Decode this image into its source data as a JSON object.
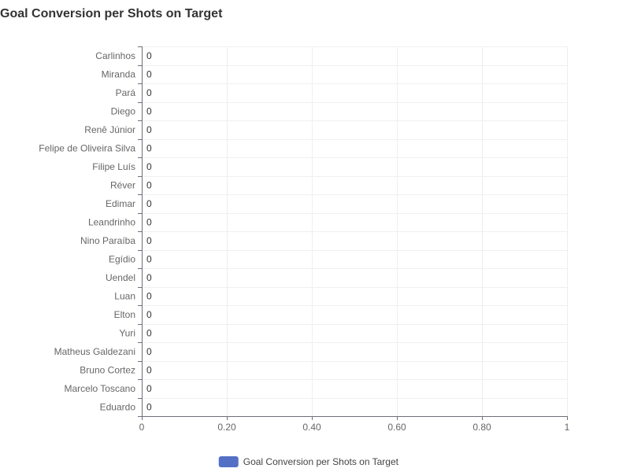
{
  "chart_data": {
    "type": "bar",
    "orientation": "horizontal",
    "title": "Goal Conversion per Shots on Target",
    "xlabel": "",
    "ylabel": "",
    "categories": [
      "Carlinhos",
      "Miranda",
      "Pará",
      "Diego",
      "Renê Júnior",
      "Felipe de Oliveira Silva",
      "Filipe Luís",
      "Réver",
      "Edimar",
      "Leandrinho",
      "Nino Paraíba",
      "Egídio",
      "Uendel",
      "Luan",
      "Elton",
      "Yuri",
      "Matheus Galdezani",
      "Bruno Cortez",
      "Marcelo Toscano",
      "Eduardo"
    ],
    "series": [
      {
        "name": "Goal Conversion per Shots on Target",
        "color": "#5470c6",
        "values": [
          0,
          0,
          0,
          0,
          0,
          0,
          0,
          0,
          0,
          0,
          0,
          0,
          0,
          0,
          0,
          0,
          0,
          0,
          0,
          0
        ],
        "value_labels": [
          "0",
          "0",
          "0",
          "0",
          "0",
          "0",
          "0",
          "0",
          "0",
          "0",
          "0",
          "0",
          "0",
          "0",
          "0",
          "0",
          "0",
          "0",
          "0",
          "0"
        ]
      }
    ],
    "xlim": [
      0,
      1
    ],
    "x_ticks": [
      0,
      0.2,
      0.4,
      0.6,
      0.8,
      1
    ],
    "x_tick_labels": [
      "0",
      "0.20",
      "0.40",
      "0.60",
      "0.80",
      "1"
    ],
    "grid": true,
    "legend_position": "bottom-center"
  }
}
